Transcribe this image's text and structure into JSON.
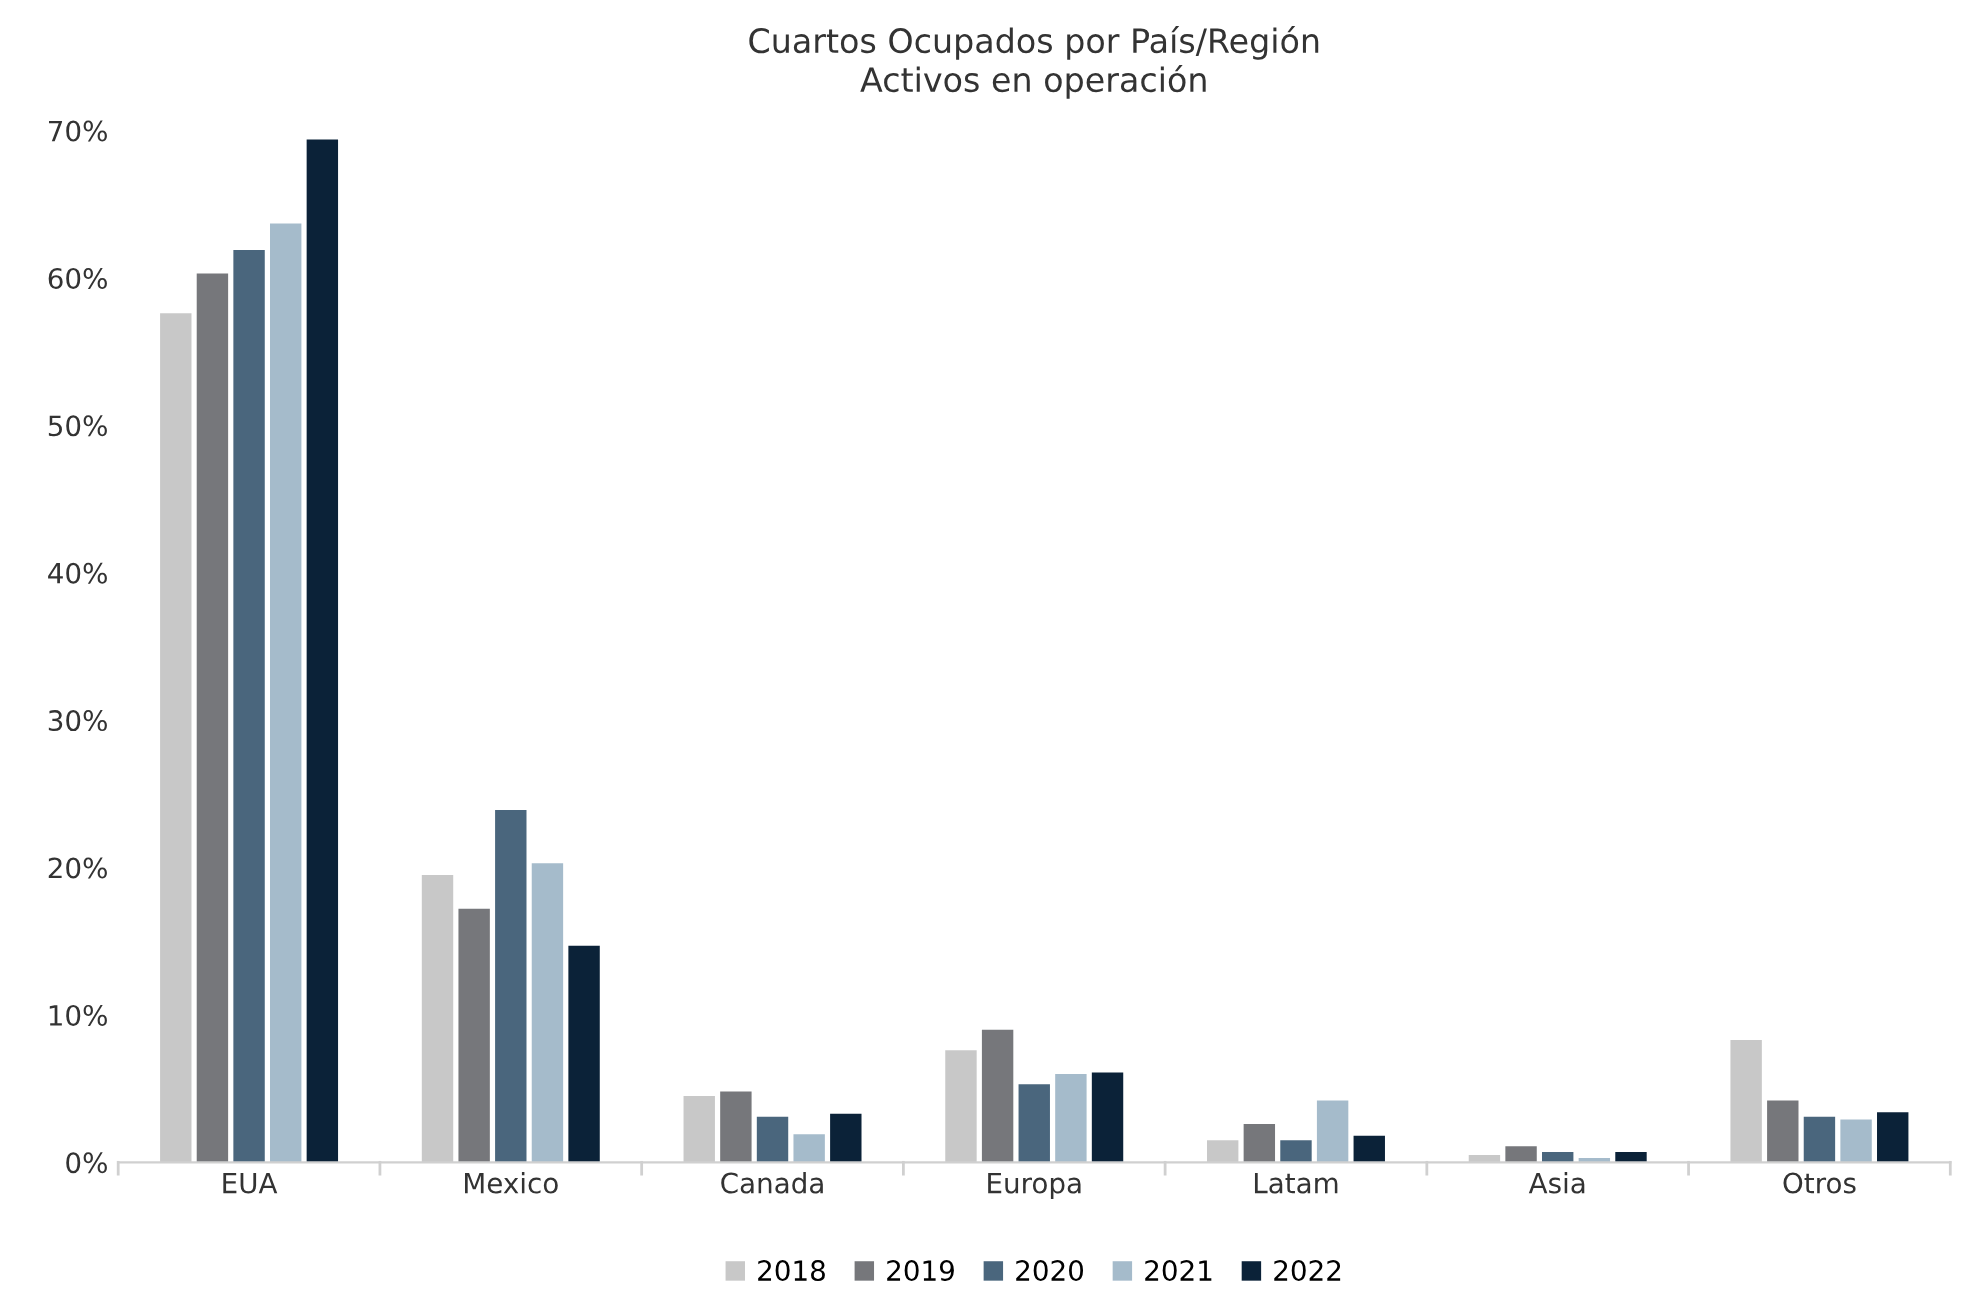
{
  "chart_data": {
    "type": "bar",
    "title": "Cuartos Ocupados por País/Región\nActivos en operación",
    "categories": [
      "EUA",
      "Mexico",
      "Canada",
      "Europa",
      "Latam",
      "Asia",
      "Otros"
    ],
    "series": [
      {
        "name": "2018",
        "color": "#c8c8c8",
        "values": [
          57.6,
          19.5,
          4.5,
          7.6,
          1.5,
          0.5,
          8.3
        ]
      },
      {
        "name": "2019",
        "color": "#76777b",
        "values": [
          60.3,
          17.2,
          4.8,
          9.0,
          2.6,
          1.1,
          4.2
        ]
      },
      {
        "name": "2020",
        "color": "#4a667d",
        "values": [
          61.9,
          23.9,
          3.1,
          5.3,
          1.5,
          0.7,
          3.1
        ]
      },
      {
        "name": "2021",
        "color": "#a5bbcb",
        "values": [
          63.7,
          20.3,
          1.9,
          6.0,
          4.2,
          0.3,
          2.9
        ]
      },
      {
        "name": "2022",
        "color": "#0b2238",
        "values": [
          69.4,
          14.7,
          3.3,
          6.1,
          1.8,
          0.7,
          3.4
        ]
      }
    ],
    "ylim": [
      0,
      70
    ],
    "yticks": [
      {
        "value": 0,
        "label": "0%"
      },
      {
        "value": 10,
        "label": "10%"
      },
      {
        "value": 20,
        "label": "20%"
      },
      {
        "value": 30,
        "label": "30%"
      },
      {
        "value": 40,
        "label": "40%"
      },
      {
        "value": 50,
        "label": "50%"
      },
      {
        "value": 60,
        "label": "60%"
      },
      {
        "value": 70,
        "label": "70%"
      }
    ],
    "grid": false,
    "legend": "bottom"
  }
}
